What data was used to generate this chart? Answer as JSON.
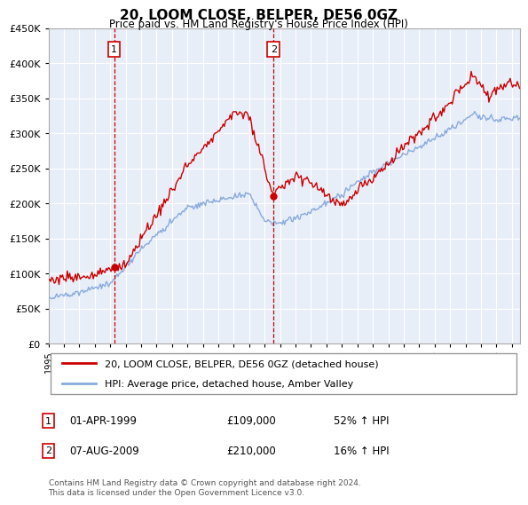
{
  "title": "20, LOOM CLOSE, BELPER, DE56 0GZ",
  "subtitle": "Price paid vs. HM Land Registry's House Price Index (HPI)",
  "legend_line1": "20, LOOM CLOSE, BELPER, DE56 0GZ (detached house)",
  "legend_line2": "HPI: Average price, detached house, Amber Valley",
  "annotation1_label": "1",
  "annotation1_date": "01-APR-1999",
  "annotation1_price": "£109,000",
  "annotation1_hpi": "52% ↑ HPI",
  "annotation2_label": "2",
  "annotation2_date": "07-AUG-2009",
  "annotation2_price": "£210,000",
  "annotation2_hpi": "16% ↑ HPI",
  "footer": "Contains HM Land Registry data © Crown copyright and database right 2024.\nThis data is licensed under the Open Government Licence v3.0.",
  "price_color": "#cc0000",
  "hpi_color": "#88aadd",
  "vline_color": "#cc0000",
  "plot_bg": "#e8eef8",
  "ylim": [
    0,
    450000
  ],
  "yticks": [
    0,
    50000,
    100000,
    150000,
    200000,
    250000,
    300000,
    350000,
    400000,
    450000
  ],
  "sale1_year": 1999.25,
  "sale1_price": 109000,
  "sale2_year": 2009.58,
  "sale2_price": 210000
}
